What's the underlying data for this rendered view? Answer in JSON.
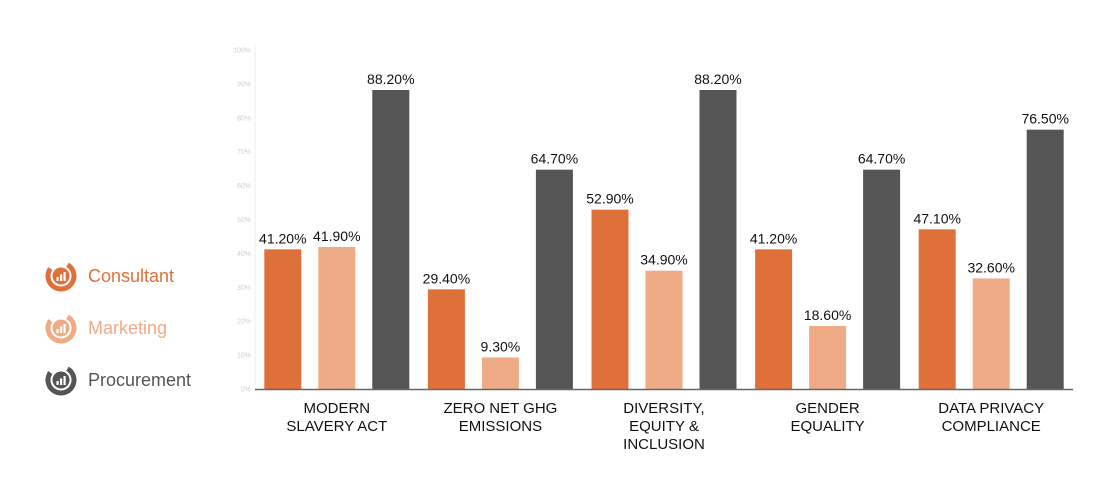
{
  "chart_data": {
    "type": "bar",
    "categories": [
      [
        "MODERN",
        "SLAVERY ACT"
      ],
      [
        "ZERO NET GHG",
        "EMISSIONS"
      ],
      [
        "DIVERSITY,",
        "EQUITY &",
        "INCLUSION"
      ],
      [
        "GENDER",
        "EQUALITY"
      ],
      [
        "DATA PRIVACY",
        "COMPLIANCE"
      ]
    ],
    "series": [
      {
        "name": "Consultant",
        "color": "#e0703a",
        "values": [
          41.2,
          29.4,
          52.9,
          41.2,
          47.1
        ],
        "labels": [
          "41.20%",
          "29.40%",
          "52.90%",
          "41.20%",
          "47.10%"
        ]
      },
      {
        "name": "Marketing",
        "color": "#efab86",
        "values": [
          41.9,
          9.3,
          34.9,
          18.6,
          32.6
        ],
        "labels": [
          "41.90%",
          "9.30%",
          "34.90%",
          "18.60%",
          "32.60%"
        ]
      },
      {
        "name": "Procurement",
        "color": "#555555",
        "values": [
          88.2,
          64.7,
          88.2,
          64.7,
          76.5
        ],
        "labels": [
          "88.20%",
          "64.70%",
          "88.20%",
          "64.70%",
          "76.50%"
        ]
      }
    ],
    "ylim": [
      0,
      100
    ],
    "yticks": [
      "0%",
      "10%",
      "20%",
      "30%",
      "40%",
      "50%",
      "60%",
      "70%",
      "80%",
      "90%",
      "100%"
    ],
    "legend_position": "left",
    "grid": false
  }
}
